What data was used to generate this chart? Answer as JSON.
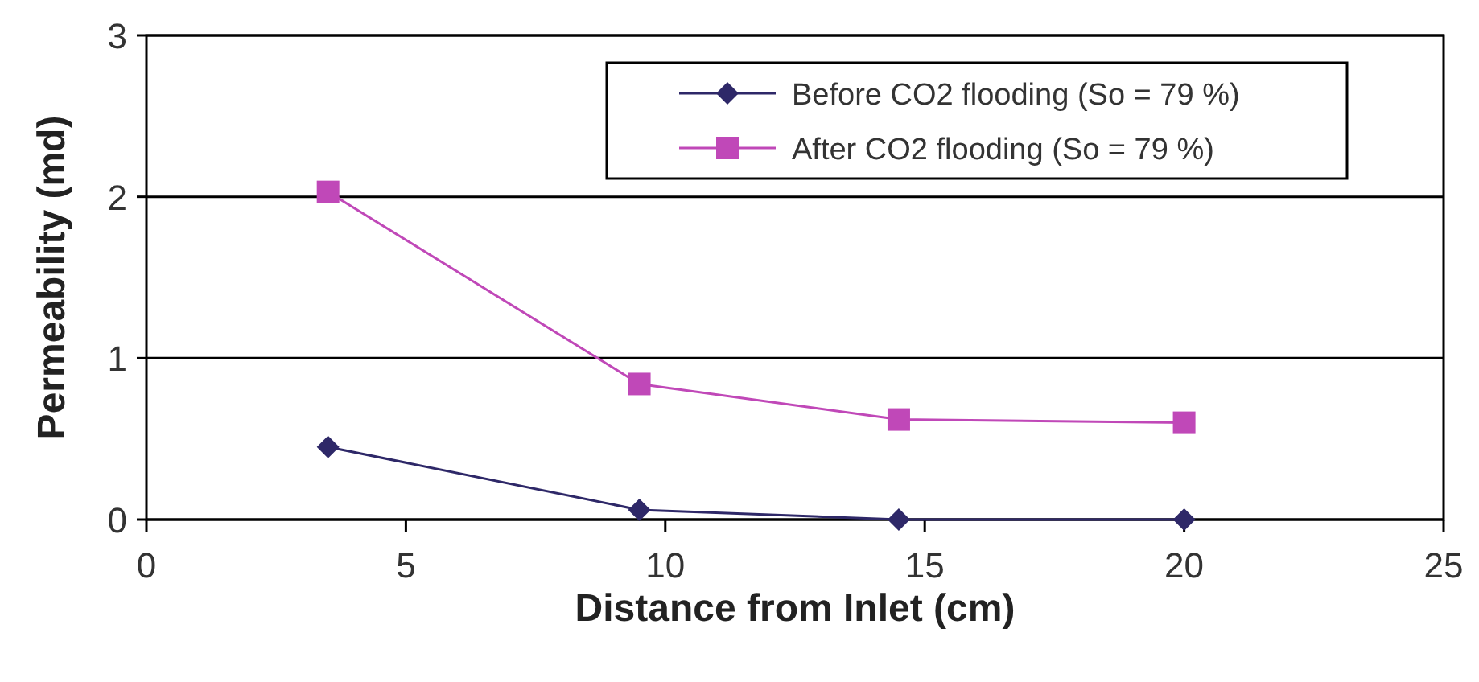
{
  "chart_data": {
    "type": "line",
    "xlabel": "Distance from Inlet (cm)",
    "ylabel": "Permeability (md)",
    "xlim": [
      0,
      25
    ],
    "xticks": [
      0,
      5,
      10,
      15,
      20,
      25
    ],
    "ylim": [
      0,
      3
    ],
    "yticks": [
      0,
      1,
      2,
      3
    ],
    "grid": "y",
    "legend": "top right",
    "series": [
      {
        "name": "Before CO2 flooding (So = 79 %)",
        "color": "#2e2868",
        "marker": "diamond",
        "x": [
          3.5,
          9.5,
          14.5,
          20
        ],
        "values": [
          0.45,
          0.06,
          0,
          0
        ]
      },
      {
        "name": "After CO2 flooding (So = 79 %)",
        "color": "#c048b8",
        "marker": "square",
        "x": [
          3.5,
          9.5,
          14.5,
          20
        ],
        "values": [
          2.03,
          0.84,
          0.62,
          0.6
        ]
      }
    ]
  }
}
